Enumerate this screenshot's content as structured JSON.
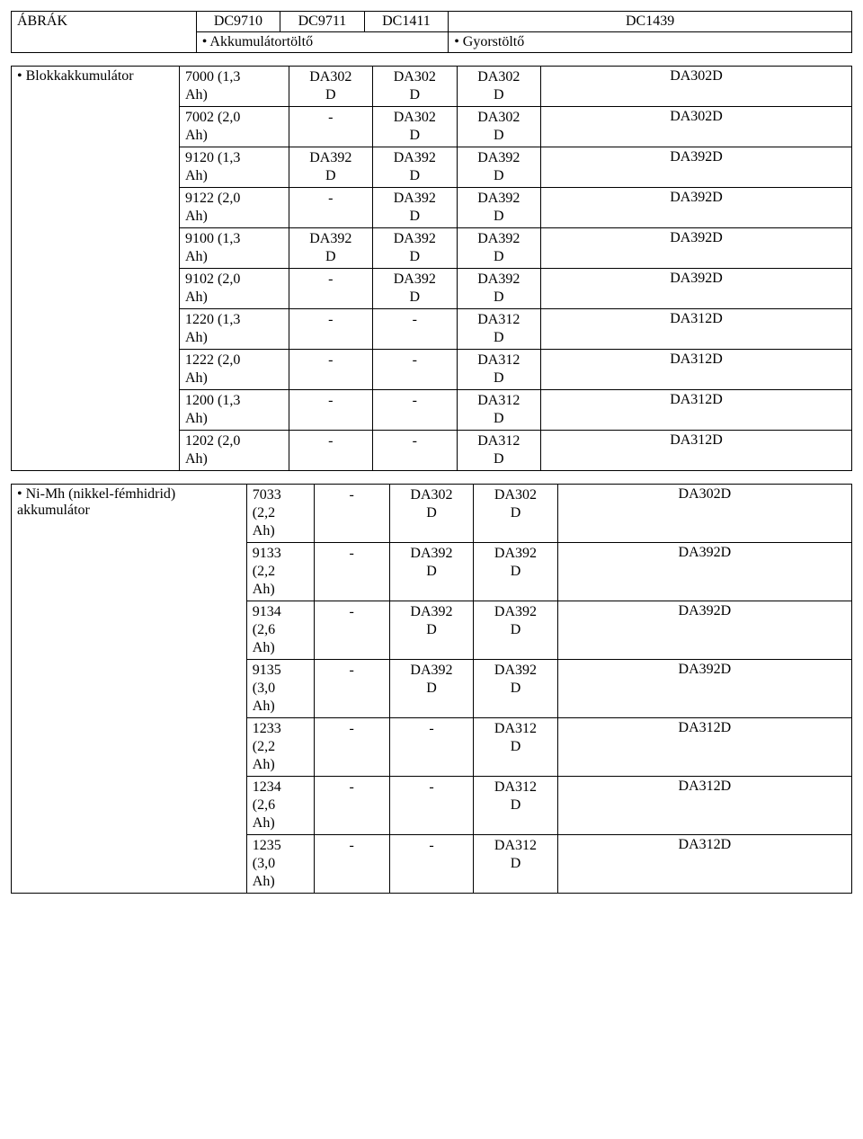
{
  "header": {
    "title": "ÁBRÁK",
    "cols": [
      "DC9710",
      "DC9711",
      "DC1411",
      "DC1439"
    ],
    "sub_left": "Akkumulátortöltő",
    "sub_right": "Gyorstöltő"
  },
  "table1": {
    "side_label": "Blokkakkumulátor",
    "rows": [
      {
        "model": "7000 (1,3 Ah)",
        "c9710": "DA302 D",
        "c9711": "DA302 D",
        "c1411": "DA302 D",
        "c1439": "DA302D"
      },
      {
        "model": "7002 (2,0 Ah)",
        "c9710": "-",
        "c9711": "DA302 D",
        "c1411": "DA302 D",
        "c1439": "DA302D"
      },
      {
        "model": "9120 (1,3 Ah)",
        "c9710": "DA392 D",
        "c9711": "DA392 D",
        "c1411": "DA392 D",
        "c1439": "DA392D"
      },
      {
        "model": "9122 (2,0 Ah)",
        "c9710": "-",
        "c9711": "DA392 D",
        "c1411": "DA392 D",
        "c1439": "DA392D"
      },
      {
        "model": "9100 (1,3 Ah)",
        "c9710": "DA392 D",
        "c9711": "DA392 D",
        "c1411": "DA392 D",
        "c1439": "DA392D"
      },
      {
        "model": "9102 (2,0 Ah)",
        "c9710": "-",
        "c9711": "DA392 D",
        "c1411": "DA392 D",
        "c1439": "DA392D"
      },
      {
        "model": "1220 (1,3 Ah)",
        "c9710": "-",
        "c9711": "-",
        "c1411": "DA312 D",
        "c1439": "DA312D"
      },
      {
        "model": "1222 (2,0 Ah)",
        "c9710": "-",
        "c9711": "-",
        "c1411": "DA312 D",
        "c1439": "DA312D"
      },
      {
        "model": "1200 (1,3 Ah)",
        "c9710": "-",
        "c9711": "-",
        "c1411": "DA312 D",
        "c1439": "DA312D"
      },
      {
        "model": "1202 (2,0 Ah)",
        "c9710": "-",
        "c9711": "-",
        "c1411": "DA312 D",
        "c1439": "DA312D"
      }
    ]
  },
  "table2": {
    "side_label": "Ni-Mh (nikkel-fémhidrid) akkumulátor",
    "rows": [
      {
        "model": "7033 (2,2 Ah)",
        "c9710": "-",
        "c9711": "DA302 D",
        "c1411": "DA302 D",
        "c1439": "DA302D"
      },
      {
        "model": "9133 (2,2 Ah)",
        "c9710": "-",
        "c9711": "DA392 D",
        "c1411": "DA392 D",
        "c1439": "DA392D"
      },
      {
        "model": "9134 (2,6 Ah)",
        "c9710": "-",
        "c9711": "DA392 D",
        "c1411": "DA392 D",
        "c1439": "DA392D"
      },
      {
        "model": "9135 (3,0 Ah)",
        "c9710": "-",
        "c9711": "DA392 D",
        "c1411": "DA392 D",
        "c1439": "DA392D"
      },
      {
        "model": "1233 (2,2 Ah)",
        "c9710": "-",
        "c9711": "-",
        "c1411": "DA312 D",
        "c1439": "DA312D"
      },
      {
        "model": "1234 (2,6 Ah)",
        "c9710": "-",
        "c9711": "-",
        "c1411": "DA312 D",
        "c1439": "DA312D"
      },
      {
        "model": "1235 (3,0 Ah)",
        "c9710": "-",
        "c9711": "-",
        "c1411": "DA312 D",
        "c1439": "DA312D"
      }
    ]
  }
}
